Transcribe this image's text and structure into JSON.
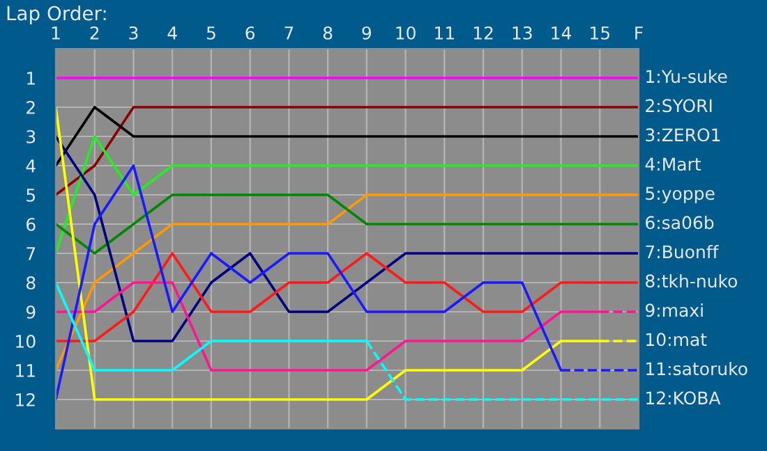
{
  "chart_data": {
    "type": "line",
    "title": "Lap Order:",
    "xlim": [
      1,
      16
    ],
    "xticks": [
      1,
      2,
      3,
      4,
      5,
      6,
      7,
      8,
      9,
      10,
      11,
      12,
      13,
      14,
      15,
      {
        "value": 16,
        "label": "F"
      }
    ],
    "ylim": [
      13,
      0
    ],
    "yticks": [
      1,
      2,
      3,
      4,
      5,
      6,
      7,
      8,
      9,
      10,
      11,
      12
    ],
    "grid": true,
    "legend": false,
    "series": [
      {
        "name": "1:Yu-suke",
        "color": "#ff00ff",
        "x": [
          1,
          16
        ],
        "values": [
          1,
          1
        ]
      },
      {
        "name": "2:SYORI",
        "color": "#8b0000",
        "x": [
          1,
          2,
          3,
          16
        ],
        "values": [
          5,
          4,
          2,
          2
        ]
      },
      {
        "name": "3:ZERO1",
        "color": "#000000",
        "x": [
          1,
          2,
          3,
          16
        ],
        "values": [
          4,
          2,
          3,
          3
        ]
      },
      {
        "name": "4:Mart",
        "color": "#22ee22",
        "x": [
          1,
          2,
          3,
          4,
          16
        ],
        "values": [
          7,
          3,
          5,
          4,
          4
        ]
      },
      {
        "name": "5:yoppe",
        "color": "#ff9900",
        "x": [
          1,
          2,
          3,
          4,
          8,
          9,
          16
        ],
        "values": [
          11,
          8,
          7,
          6,
          6,
          5,
          5
        ]
      },
      {
        "name": "6:sa06b",
        "color": "#008800",
        "x": [
          1,
          2,
          3,
          4,
          8,
          9,
          16
        ],
        "values": [
          6,
          7,
          6,
          5,
          5,
          6,
          6
        ]
      },
      {
        "name": "7:Buonff",
        "color": "#000080",
        "x": [
          1,
          2,
          3,
          4,
          5,
          6,
          7,
          8,
          9,
          10,
          16
        ],
        "values": [
          3,
          5,
          10,
          10,
          8,
          7,
          9,
          9,
          8,
          7,
          7
        ]
      },
      {
        "name": "8:tkh-nuko",
        "color": "#ff1a1a",
        "x": [
          1,
          2,
          3,
          4,
          5,
          6,
          7,
          8,
          9,
          10,
          11,
          12,
          13,
          14,
          16
        ],
        "values": [
          10,
          10,
          9,
          7,
          9,
          9,
          8,
          8,
          7,
          8,
          8,
          9,
          9,
          8,
          8
        ]
      },
      {
        "color": "#ff1493",
        "x": [
          1,
          2,
          3,
          4,
          5,
          9,
          10,
          13,
          14,
          15
        ],
        "values": [
          9,
          9,
          8,
          8,
          11,
          11,
          10,
          10,
          9,
          9
        ]
      },
      {
        "color": "#ffff00",
        "x": [
          1,
          2,
          9,
          10,
          13,
          14,
          15
        ],
        "values": [
          2,
          12,
          12,
          11,
          11,
          10,
          10
        ]
      },
      {
        "color": "#1a1aff",
        "x": [
          1,
          2,
          3,
          4,
          5,
          6,
          7,
          8,
          9,
          11,
          12,
          13,
          14
        ],
        "values": [
          12,
          6,
          4,
          9,
          7,
          8,
          7,
          7,
          9,
          9,
          8,
          8,
          11
        ]
      },
      {
        "color": "#00ffff",
        "x": [
          1,
          2,
          4,
          5,
          9
        ],
        "values": [
          8,
          11,
          11,
          10,
          10
        ]
      },
      {
        "name": "9:maxi",
        "color": "#ff1493",
        "line_style": "dashed",
        "x": [
          15,
          16
        ],
        "values": [
          9,
          9
        ]
      },
      {
        "name": "10:mat",
        "color": "#ffff00",
        "line_style": "dashed",
        "x": [
          15,
          16
        ],
        "values": [
          10,
          10
        ]
      },
      {
        "name": "11:satoruko",
        "color": "#1a1aff",
        "line_style": "dashed",
        "x": [
          14,
          16
        ],
        "values": [
          11,
          11
        ]
      },
      {
        "name": "12:KOBA",
        "color": "#00ffff",
        "line_style": "dashed",
        "x": [
          9,
          10,
          16
        ],
        "values": [
          10,
          12,
          12
        ]
      }
    ]
  }
}
